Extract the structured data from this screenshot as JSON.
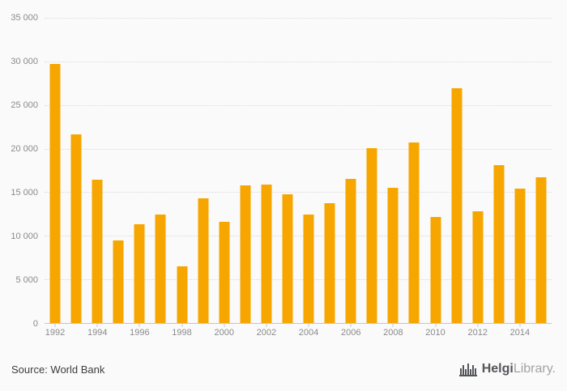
{
  "chart_data": {
    "type": "bar",
    "title": "",
    "xlabel": "",
    "ylabel": "",
    "categories": [
      1992,
      1993,
      1994,
      1995,
      1996,
      1997,
      1998,
      1999,
      2000,
      2001,
      2002,
      2003,
      2004,
      2005,
      2006,
      2007,
      2008,
      2009,
      2010,
      2011,
      2012,
      2013,
      2014,
      2015
    ],
    "values": [
      29700,
      21600,
      16400,
      9500,
      11300,
      12400,
      6500,
      14300,
      11600,
      15800,
      15900,
      14800,
      12400,
      13700,
      16500,
      20100,
      15500,
      20700,
      12200,
      26900,
      12800,
      18100,
      15400,
      16700
    ],
    "ylim": [
      0,
      35000
    ],
    "ytick_step": 5000,
    "ytick_labels": [
      "0",
      "5 000",
      "10 000",
      "15 000",
      "20 000",
      "25 000",
      "30 000",
      "35 000"
    ],
    "xtick_labels": [
      "1992",
      "1994",
      "1996",
      "1998",
      "2000",
      "2002",
      "2004",
      "2006",
      "2008",
      "2010",
      "2012",
      "2014"
    ],
    "bar_color": "#F7A600",
    "grid": true,
    "legend": false
  },
  "footer": {
    "source_text": "Source: World Bank"
  },
  "logo": {
    "brand_primary": "Helgi",
    "brand_secondary": "Library."
  }
}
